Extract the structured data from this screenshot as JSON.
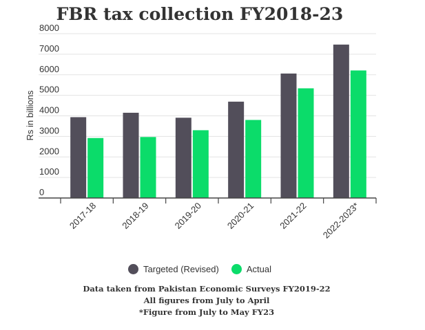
{
  "chart_data": {
    "type": "bar",
    "title": "FBR tax collection FY2018-23",
    "ylabel": "Rs in billions",
    "xlabel": "",
    "ylim": [
      0,
      8000
    ],
    "yticks": [
      0,
      1000,
      2000,
      3000,
      4000,
      5000,
      6000,
      7000,
      8000
    ],
    "categories": [
      "2017-18",
      "2018-19",
      "2019-20",
      "2020-21",
      "2021-22",
      "2022-2023*"
    ],
    "series": [
      {
        "name": "Targeted (Revised)",
        "color": "#524e5a",
        "values": [
          3935,
          4150,
          3908,
          4691,
          6060,
          7470
        ]
      },
      {
        "name": "Actual",
        "color": "#0bdc6a",
        "values": [
          2920,
          2970,
          3300,
          3800,
          5340,
          6210
        ]
      }
    ],
    "grid": true,
    "legend_position": "bottom"
  },
  "notes": [
    "Data taken from Pakistan Economic Surveys FY2019-22",
    "All figures from July to April",
    "*Figure from July to May FY23"
  ]
}
